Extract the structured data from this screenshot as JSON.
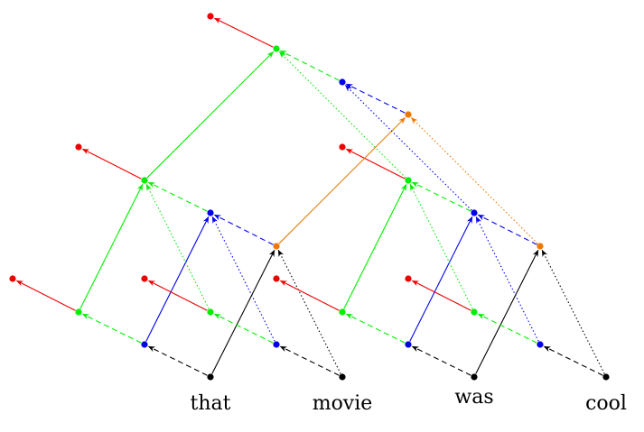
{
  "words": [
    "that",
    "movie",
    "was",
    "cool"
  ],
  "colors": {
    "black": "#000000",
    "blue": "#0000ee",
    "green": "#00ee00",
    "red": "#ee0000",
    "orange": "#f07800"
  },
  "nodes": [
    {
      "id": "w0",
      "color": "black"
    },
    {
      "id": "w1",
      "color": "black"
    },
    {
      "id": "w2",
      "color": "black"
    },
    {
      "id": "w3",
      "color": "black"
    },
    {
      "id": "b1",
      "color": "blue"
    },
    {
      "id": "b2",
      "color": "blue"
    },
    {
      "id": "b3",
      "color": "blue"
    },
    {
      "id": "b4",
      "color": "blue"
    },
    {
      "id": "b5",
      "color": "blue"
    },
    {
      "id": "b6",
      "color": "blue"
    },
    {
      "id": "g1",
      "color": "green"
    },
    {
      "id": "g2",
      "color": "green"
    },
    {
      "id": "g3",
      "color": "green"
    },
    {
      "id": "g4",
      "color": "green"
    },
    {
      "id": "g5",
      "color": "green"
    },
    {
      "id": "g6",
      "color": "green"
    },
    {
      "id": "o1",
      "color": "orange"
    },
    {
      "id": "o2",
      "color": "orange"
    },
    {
      "id": "o3",
      "color": "orange"
    },
    {
      "id": "r1",
      "color": "red"
    },
    {
      "id": "r2",
      "color": "red"
    },
    {
      "id": "r3",
      "color": "red"
    },
    {
      "id": "r4",
      "color": "red"
    },
    {
      "id": "r5",
      "color": "red"
    },
    {
      "id": "r6",
      "color": "red"
    }
  ],
  "edges": [
    {
      "from": "w0",
      "to": "b1",
      "color": "black",
      "style": "dashed"
    },
    {
      "from": "w1",
      "to": "b2",
      "color": "black",
      "style": "dashed"
    },
    {
      "from": "w2",
      "to": "b3",
      "color": "black",
      "style": "dashed"
    },
    {
      "from": "w3",
      "to": "b4",
      "color": "black",
      "style": "dashed"
    },
    {
      "from": "w0",
      "to": "o1",
      "color": "black",
      "style": "solid"
    },
    {
      "from": "w1",
      "to": "o1",
      "color": "black",
      "style": "dotted"
    },
    {
      "from": "w2",
      "to": "o2",
      "color": "black",
      "style": "solid"
    },
    {
      "from": "w3",
      "to": "o2",
      "color": "black",
      "style": "dotted"
    },
    {
      "from": "b1",
      "to": "g1",
      "color": "green",
      "style": "dashed"
    },
    {
      "from": "b2",
      "to": "g2",
      "color": "green",
      "style": "dashed"
    },
    {
      "from": "b3",
      "to": "g3",
      "color": "green",
      "style": "dashed"
    },
    {
      "from": "b4",
      "to": "g4",
      "color": "green",
      "style": "dashed"
    },
    {
      "from": "b1",
      "to": "b5",
      "color": "blue",
      "style": "solid"
    },
    {
      "from": "b2",
      "to": "b5",
      "color": "blue",
      "style": "dotted"
    },
    {
      "from": "b3",
      "to": "b6",
      "color": "blue",
      "style": "solid"
    },
    {
      "from": "b4",
      "to": "b6",
      "color": "blue",
      "style": "dotted"
    },
    {
      "from": "o1",
      "to": "b5",
      "color": "blue",
      "style": "dashed"
    },
    {
      "from": "o2",
      "to": "b6",
      "color": "blue",
      "style": "dashed"
    },
    {
      "from": "g1",
      "to": "r1",
      "color": "red",
      "style": "solid"
    },
    {
      "from": "g2",
      "to": "r2",
      "color": "red",
      "style": "solid"
    },
    {
      "from": "g3",
      "to": "r3",
      "color": "red",
      "style": "solid"
    },
    {
      "from": "g4",
      "to": "r4",
      "color": "red",
      "style": "solid"
    },
    {
      "from": "g1",
      "to": "g5",
      "color": "green",
      "style": "solid"
    },
    {
      "from": "g2",
      "to": "g5",
      "color": "green",
      "style": "dotted"
    },
    {
      "from": "g3",
      "to": "g6",
      "color": "green",
      "style": "solid"
    },
    {
      "from": "g4",
      "to": "g6",
      "color": "green",
      "style": "dotted"
    },
    {
      "from": "b5",
      "to": "g5",
      "color": "green",
      "style": "dashed"
    },
    {
      "from": "b6",
      "to": "g6",
      "color": "green",
      "style": "dashed"
    },
    {
      "from": "g5",
      "to": "r5",
      "color": "red",
      "style": "solid"
    },
    {
      "from": "g6",
      "to": "r6",
      "color": "red",
      "style": "solid"
    },
    {
      "from": "o1",
      "to": "o3",
      "color": "orange",
      "style": "solid"
    },
    {
      "from": "o2",
      "to": "o3",
      "color": "orange",
      "style": "dotted"
    },
    {
      "from": "b5",
      "to": "r7",
      "color": "blue",
      "style": "solid"
    },
    {
      "from": "b6",
      "to": "b7",
      "color": "blue",
      "style": "dotted"
    },
    {
      "from": "o3",
      "to": "b7",
      "color": "blue",
      "style": "dashed"
    },
    {
      "from": "b7",
      "to": "g7",
      "color": "green",
      "style": "dashed"
    },
    {
      "from": "g5",
      "to": "g7",
      "color": "green",
      "style": "solid"
    },
    {
      "from": "g6",
      "to": "g7",
      "color": "green",
      "style": "dotted"
    },
    {
      "from": "g7",
      "to": "r7",
      "color": "red",
      "style": "solid"
    }
  ],
  "extra_nodes": [
    {
      "id": "b7",
      "color": "blue"
    },
    {
      "id": "g7",
      "color": "green"
    },
    {
      "id": "r7",
      "color": "red"
    }
  ]
}
